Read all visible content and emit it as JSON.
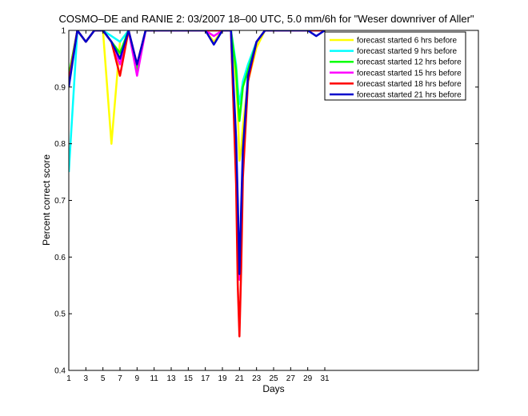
{
  "chart_data": {
    "type": "line",
    "title": "COSMO–DE and RANIE 2: 03/2007 18–00 UTC, 5.0 mm/6h for \"Weser downriver of Aller\"",
    "xlabel": "Days",
    "ylabel": "Percent correct score",
    "xlim": [
      1,
      49
    ],
    "ylim": [
      0.4,
      1
    ],
    "xticks": [
      1,
      3,
      5,
      7,
      9,
      11,
      13,
      15,
      17,
      19,
      21,
      23,
      25,
      27,
      29,
      31
    ],
    "yticks": [
      0.4,
      0.5,
      0.6,
      0.7,
      0.8,
      0.9,
      1
    ],
    "ytick_labels": [
      "0.4",
      "0.5",
      "0.6",
      "0.7",
      "0.8",
      "0.9",
      "1"
    ],
    "grid": false,
    "legend_position": "top-right",
    "x": [
      1,
      2,
      3,
      4,
      5,
      6,
      7,
      8,
      9,
      10,
      11,
      12,
      13,
      14,
      15,
      16,
      17,
      18,
      19,
      20,
      20.6,
      20.8,
      21,
      21.2,
      21.4,
      22,
      23,
      24,
      25,
      26,
      27,
      28,
      29,
      30,
      31
    ],
    "series": [
      {
        "name": "forecast started 6 hrs before",
        "color": "#ffff00",
        "values": [
          0.92,
          1,
          0.98,
          1,
          1,
          0.8,
          0.98,
          1,
          0.93,
          1,
          1,
          1,
          1,
          1,
          1,
          1,
          1,
          0.98,
          1,
          1,
          0.91,
          0.86,
          0.77,
          0.79,
          0.83,
          0.91,
          0.97,
          1,
          1,
          1,
          1,
          1,
          1,
          1,
          1
        ]
      },
      {
        "name": "forecast started 9 hrs before",
        "color": "#00ffff",
        "values": [
          0.75,
          1,
          0.98,
          1,
          1,
          0.99,
          0.98,
          1,
          0.93,
          1,
          1,
          1,
          1,
          1,
          1,
          1,
          1,
          1,
          1,
          1,
          0.94,
          0.9,
          0.87,
          0.89,
          0.91,
          0.94,
          0.98,
          1,
          1,
          1,
          1,
          1,
          1,
          1,
          1
        ]
      },
      {
        "name": "forecast started 12 hrs before",
        "color": "#00ff00",
        "values": [
          0.92,
          1,
          0.98,
          1,
          1,
          0.98,
          0.96,
          1,
          0.93,
          1,
          1,
          1,
          1,
          1,
          1,
          1,
          1,
          1,
          1,
          1,
          0.93,
          0.88,
          0.84,
          0.87,
          0.9,
          0.93,
          0.98,
          1,
          1,
          1,
          1,
          1,
          1,
          1,
          1
        ]
      },
      {
        "name": "forecast started 15 hrs before",
        "color": "#ff00ff",
        "values": [
          0.91,
          1,
          0.98,
          1,
          1,
          0.98,
          0.94,
          1,
          0.92,
          1,
          1,
          1,
          1,
          1,
          1,
          1,
          1,
          0.99,
          1,
          1,
          0.75,
          0.6,
          0.56,
          0.63,
          0.78,
          0.92,
          0.98,
          1,
          1,
          1,
          1,
          1,
          1,
          1,
          1
        ]
      },
      {
        "name": "forecast started 18 hrs before",
        "color": "#ff0000",
        "values": [
          0.91,
          1,
          0.98,
          1,
          1,
          0.98,
          0.92,
          1,
          0.94,
          1,
          1,
          1,
          1,
          1,
          1,
          1,
          1,
          1,
          1,
          1,
          0.73,
          0.55,
          0.46,
          0.58,
          0.74,
          0.91,
          0.98,
          1,
          1,
          1,
          1,
          1,
          1,
          1,
          1
        ]
      },
      {
        "name": "forecast started 21 hrs before",
        "color": "#0000cc",
        "values": [
          0.9,
          1,
          0.98,
          1,
          1,
          0.98,
          0.95,
          1,
          0.94,
          1,
          1,
          1,
          1,
          1,
          1,
          1,
          1,
          0.975,
          1,
          1,
          0.81,
          0.7,
          0.57,
          0.69,
          0.79,
          0.92,
          0.98,
          1,
          1,
          1,
          1,
          1,
          1,
          0.99,
          1
        ]
      }
    ]
  }
}
